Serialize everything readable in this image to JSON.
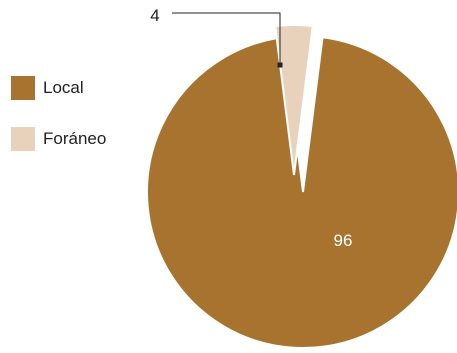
{
  "chart_data": {
    "type": "pie",
    "legend_position": "left",
    "series": [
      {
        "name": "Local",
        "value": 96,
        "label": "96",
        "color": "#A8732E"
      },
      {
        "name": "Foráneo",
        "value": 4,
        "label": "4",
        "color": "#E8D2BC"
      }
    ]
  }
}
